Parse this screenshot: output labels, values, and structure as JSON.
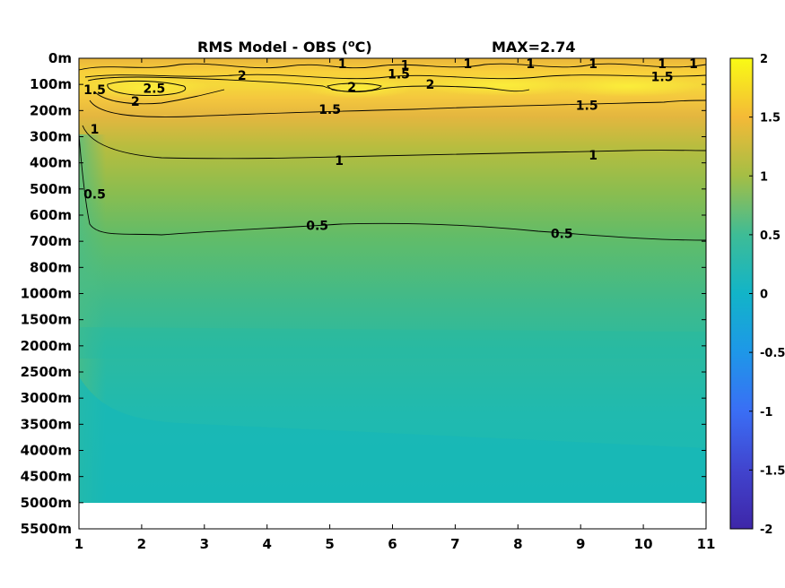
{
  "chart_data": {
    "type": "heatmap",
    "subtype": "filled-contour",
    "title": "RMS Model - OBS (",
    "title_unit_sup": "o",
    "title_unit_end": "C)",
    "title_max": "MAX=2.74",
    "xlabel": "",
    "ylabel": "",
    "x_ticks": [
      "1",
      "2",
      "3",
      "4",
      "5",
      "6",
      "7",
      "8",
      "9",
      "10",
      "11"
    ],
    "xlim": [
      1,
      11
    ],
    "y_ticks": [
      "0m",
      "100m",
      "200m",
      "300m",
      "400m",
      "500m",
      "600m",
      "700m",
      "800m",
      "1000m",
      "1500m",
      "2000m",
      "2500m",
      "3000m",
      "3500m",
      "4000m",
      "4500m",
      "5000m",
      "5500m"
    ],
    "y_data_bottom_label": "5000m",
    "colorbar": {
      "range": [
        -2,
        2
      ],
      "ticks": [
        "2",
        "1.5",
        "1",
        "0.5",
        "0",
        "-0.5",
        "-1",
        "-1.5",
        "-2"
      ],
      "colormap": "parula"
    },
    "contour_levels": [
      0.5,
      1,
      1.5,
      2,
      2.5
    ],
    "contour_labels": [
      {
        "text": "1",
        "x": 5.2,
        "y_level": 0.2
      },
      {
        "text": "1.5",
        "x": 6.1,
        "y_level": 0.6
      },
      {
        "text": "1",
        "x": 6.2,
        "y_level": 0.25
      },
      {
        "text": "1",
        "x": 7.2,
        "y_level": 0.2
      },
      {
        "text": "1",
        "x": 8.2,
        "y_level": 0.2
      },
      {
        "text": "1",
        "x": 9.2,
        "y_level": 0.2
      },
      {
        "text": "1",
        "x": 10.3,
        "y_level": 0.2
      },
      {
        "text": "1",
        "x": 10.8,
        "y_level": 0.2
      },
      {
        "text": "2",
        "x": 3.6,
        "y_level": 0.65
      },
      {
        "text": "2.5",
        "x": 2.2,
        "y_level": 1.15
      },
      {
        "text": "2",
        "x": 1.9,
        "y_level": 1.65
      },
      {
        "text": "2",
        "x": 5.35,
        "y_level": 1.1
      },
      {
        "text": "2",
        "x": 6.6,
        "y_level": 1.0
      },
      {
        "text": "1.5",
        "x": 1.25,
        "y_level": 1.2
      },
      {
        "text": "1.5",
        "x": 5.0,
        "y_level": 1.95
      },
      {
        "text": "1.5",
        "x": 10.3,
        "y_level": 0.7
      },
      {
        "text": "1.5",
        "x": 9.1,
        "y_level": 1.8
      },
      {
        "text": "1",
        "x": 1.25,
        "y_level": 2.7
      },
      {
        "text": "1",
        "x": 5.15,
        "y_level": 3.9
      },
      {
        "text": "1",
        "x": 9.2,
        "y_level": 3.7
      },
      {
        "text": "0.5",
        "x": 1.25,
        "y_level": 5.2
      },
      {
        "text": "0.5",
        "x": 4.8,
        "y_level": 6.4
      },
      {
        "text": "0.5",
        "x": 8.7,
        "y_level": 6.7
      }
    ],
    "grid": false,
    "legend": "colorbar-right"
  }
}
